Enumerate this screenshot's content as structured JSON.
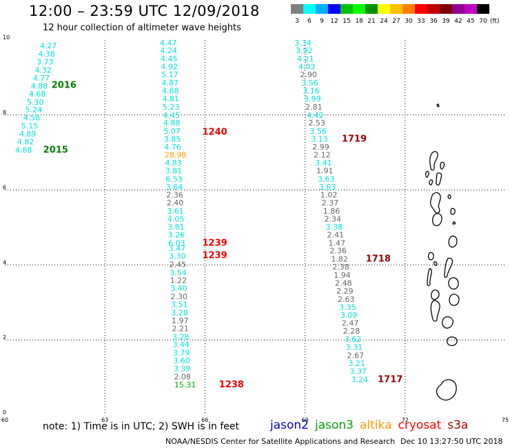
{
  "header": {
    "title": "12:00 – 23:59 UTC 12/09/2018",
    "subtitle": "12 hour collection of altimeter wave heights"
  },
  "legend": {
    "colorbar_labels": [
      "3",
      "6",
      "9",
      "12",
      "15",
      "18",
      "21",
      "24",
      "27",
      "30",
      "33",
      "36",
      "39",
      "42",
      "45",
      "70"
    ],
    "colorbar_colors": [
      "#808080",
      "#00ffff",
      "#00b0ff",
      "#0000ff",
      "#00c000",
      "#00ff00",
      "#009000",
      "#ffff00",
      "#ffc000",
      "#ff8000",
      "#ff0000",
      "#c00000",
      "#800000",
      "#900090",
      "#c000c0",
      "#000000"
    ],
    "unit": "(ft)",
    "satellites": [
      {
        "name": "jason2",
        "color": "#0000cc"
      },
      {
        "name": "jason3",
        "color": "#00a000"
      },
      {
        "name": "altika",
        "color": "#ff9900"
      },
      {
        "name": "cryosat",
        "color": "#ff0000"
      },
      {
        "name": "s3a",
        "color": "#b00000"
      }
    ]
  },
  "footer": {
    "note": "note: 1) Time is in UTC; 2) SWH is in feet",
    "credit": "NOAA/NESDIS Center for Satellite Applications and Research",
    "timestamp": "Dec 10 13:27:50 UTC 2018"
  },
  "map": {
    "lon_range": [
      60,
      75
    ],
    "lat_range": [
      0,
      10
    ],
    "x_ticks": [
      "60",
      "63",
      "66",
      "69",
      "72",
      "75"
    ],
    "y_ticks": [
      "0",
      "2",
      "4",
      "6",
      "8",
      "10"
    ],
    "coastline": "Maldives",
    "colors": {
      "cyan": "#00e0e0",
      "gray": "#666666",
      "green": "#008000",
      "orange": "#ff9900",
      "red": "#ee0000",
      "darkred": "#990000",
      "lightgreen": "#00b000"
    },
    "tracks": [
      {
        "lon": 61.05,
        "lat": 9.85,
        "value": "4.27",
        "color": "cyan"
      },
      {
        "lon": 61.0,
        "lat": 9.63,
        "value": "4.38",
        "color": "cyan"
      },
      {
        "lon": 60.95,
        "lat": 9.42,
        "value": "3.73",
        "color": "cyan"
      },
      {
        "lon": 60.9,
        "lat": 9.2,
        "value": "4.32",
        "color": "cyan"
      },
      {
        "lon": 60.84,
        "lat": 8.99,
        "value": "4.77",
        "color": "cyan"
      },
      {
        "lon": 60.78,
        "lat": 8.78,
        "value": "4.88",
        "color": "cyan"
      },
      {
        "lon": 60.72,
        "lat": 8.57,
        "value": "4.68",
        "color": "cyan"
      },
      {
        "lon": 60.66,
        "lat": 8.35,
        "value": "5.30",
        "color": "cyan"
      },
      {
        "lon": 60.61,
        "lat": 8.14,
        "value": "5.24",
        "color": "cyan"
      },
      {
        "lon": 60.55,
        "lat": 7.93,
        "value": "4.58",
        "color": "cyan"
      },
      {
        "lon": 60.49,
        "lat": 7.71,
        "value": "5.15",
        "color": "cyan"
      },
      {
        "lon": 60.43,
        "lat": 7.5,
        "value": "4.89",
        "color": "cyan"
      },
      {
        "lon": 60.37,
        "lat": 7.29,
        "value": "4.82",
        "color": "cyan"
      },
      {
        "lon": 60.31,
        "lat": 7.07,
        "value": "4.88",
        "color": "cyan"
      },
      {
        "lon": 61.4,
        "lat": 8.8,
        "value": "2016",
        "color": "green",
        "label": true
      },
      {
        "lon": 61.15,
        "lat": 7.07,
        "value": "2015",
        "color": "green",
        "label": true
      },
      {
        "lon": 64.65,
        "lat": 9.93,
        "value": "4.47",
        "color": "cyan"
      },
      {
        "lon": 64.66,
        "lat": 9.72,
        "value": "4.24",
        "color": "cyan"
      },
      {
        "lon": 64.67,
        "lat": 9.5,
        "value": "4.45",
        "color": "cyan"
      },
      {
        "lon": 64.68,
        "lat": 9.29,
        "value": "4.92",
        "color": "cyan"
      },
      {
        "lon": 64.69,
        "lat": 9.08,
        "value": "5.17",
        "color": "cyan"
      },
      {
        "lon": 64.7,
        "lat": 8.86,
        "value": "4.87",
        "color": "cyan"
      },
      {
        "lon": 64.71,
        "lat": 8.65,
        "value": "4.68",
        "color": "cyan"
      },
      {
        "lon": 64.72,
        "lat": 8.44,
        "value": "4.81",
        "color": "cyan"
      },
      {
        "lon": 64.73,
        "lat": 8.22,
        "value": "5.23",
        "color": "cyan"
      },
      {
        "lon": 64.74,
        "lat": 8.0,
        "value": "4.45",
        "color": "cyan"
      },
      {
        "lon": 64.75,
        "lat": 7.79,
        "value": "4.88",
        "color": "cyan"
      },
      {
        "lon": 64.76,
        "lat": 7.57,
        "value": "5.07",
        "color": "cyan"
      },
      {
        "lon": 64.77,
        "lat": 7.36,
        "value": "3.85",
        "color": "cyan"
      },
      {
        "lon": 64.78,
        "lat": 7.15,
        "value": "4.76",
        "color": "cyan"
      },
      {
        "lon": 64.79,
        "lat": 6.94,
        "value": "28.98",
        "color": "orange"
      },
      {
        "lon": 64.8,
        "lat": 6.73,
        "value": "4.83",
        "color": "cyan"
      },
      {
        "lon": 64.81,
        "lat": 6.52,
        "value": "3.81",
        "color": "cyan"
      },
      {
        "lon": 64.82,
        "lat": 6.3,
        "value": "6.53",
        "color": "cyan"
      },
      {
        "lon": 64.83,
        "lat": 6.08,
        "value": "3.64",
        "color": "cyan"
      },
      {
        "lon": 64.84,
        "lat": 5.87,
        "value": "2.36",
        "color": "gray"
      },
      {
        "lon": 64.85,
        "lat": 5.66,
        "value": "2.40",
        "color": "gray"
      },
      {
        "lon": 64.86,
        "lat": 5.44,
        "value": "3.61",
        "color": "cyan"
      },
      {
        "lon": 64.87,
        "lat": 5.23,
        "value": "4.05",
        "color": "cyan"
      },
      {
        "lon": 64.88,
        "lat": 5.02,
        "value": "3.81",
        "color": "cyan"
      },
      {
        "lon": 64.89,
        "lat": 4.81,
        "value": "3.26",
        "color": "cyan"
      },
      {
        "lon": 64.9,
        "lat": 4.59,
        "value": "6.03",
        "color": "cyan"
      },
      {
        "lon": 64.91,
        "lat": 4.45,
        "value": "3.47",
        "color": "cyan"
      },
      {
        "lon": 64.92,
        "lat": 4.24,
        "value": "3.30",
        "color": "cyan"
      },
      {
        "lon": 64.93,
        "lat": 4.02,
        "value": "2.45",
        "color": "gray"
      },
      {
        "lon": 64.94,
        "lat": 3.8,
        "value": "3.54",
        "color": "cyan"
      },
      {
        "lon": 64.95,
        "lat": 3.59,
        "value": "1.22",
        "color": "gray"
      },
      {
        "lon": 64.96,
        "lat": 3.38,
        "value": "3.40",
        "color": "cyan"
      },
      {
        "lon": 64.97,
        "lat": 3.16,
        "value": "2.30",
        "color": "gray"
      },
      {
        "lon": 64.98,
        "lat": 2.95,
        "value": "3.51",
        "color": "cyan"
      },
      {
        "lon": 64.99,
        "lat": 2.73,
        "value": "3.28",
        "color": "cyan"
      },
      {
        "lon": 65.0,
        "lat": 2.52,
        "value": "1.97",
        "color": "gray"
      },
      {
        "lon": 65.01,
        "lat": 2.31,
        "value": "2.21",
        "color": "gray"
      },
      {
        "lon": 65.02,
        "lat": 2.09,
        "value": "3.28",
        "color": "cyan"
      },
      {
        "lon": 65.03,
        "lat": 1.88,
        "value": "3.44",
        "color": "cyan"
      },
      {
        "lon": 65.04,
        "lat": 1.66,
        "value": "3.79",
        "color": "cyan"
      },
      {
        "lon": 65.05,
        "lat": 1.45,
        "value": "3.60",
        "color": "cyan"
      },
      {
        "lon": 65.06,
        "lat": 1.24,
        "value": "3.39",
        "color": "cyan"
      },
      {
        "lon": 65.07,
        "lat": 1.02,
        "value": "2.08",
        "color": "gray"
      },
      {
        "lon": 65.08,
        "lat": 0.81,
        "value": "15.31",
        "color": "lightgreen"
      },
      {
        "lon": 65.92,
        "lat": 7.55,
        "value": "1240",
        "color": "red",
        "label": true
      },
      {
        "lon": 65.92,
        "lat": 4.59,
        "value": "1239",
        "color": "red",
        "label": true
      },
      {
        "lon": 65.92,
        "lat": 4.26,
        "value": "1239",
        "color": "red",
        "label": true
      },
      {
        "lon": 66.42,
        "lat": 0.81,
        "value": "1238",
        "color": "red",
        "label": true
      },
      {
        "lon": 68.68,
        "lat": 9.93,
        "value": "3.34",
        "color": "cyan"
      },
      {
        "lon": 68.72,
        "lat": 9.72,
        "value": "3.92",
        "color": "cyan"
      },
      {
        "lon": 68.76,
        "lat": 9.5,
        "value": "4.21",
        "color": "cyan"
      },
      {
        "lon": 68.8,
        "lat": 9.29,
        "value": "4.03",
        "color": "cyan"
      },
      {
        "lon": 68.85,
        "lat": 9.08,
        "value": "2.90",
        "color": "gray"
      },
      {
        "lon": 68.89,
        "lat": 8.86,
        "value": "3.56",
        "color": "cyan"
      },
      {
        "lon": 68.93,
        "lat": 8.65,
        "value": "3.16",
        "color": "cyan"
      },
      {
        "lon": 68.97,
        "lat": 8.44,
        "value": "3.99",
        "color": "cyan"
      },
      {
        "lon": 69.01,
        "lat": 8.22,
        "value": "2.81",
        "color": "gray"
      },
      {
        "lon": 69.05,
        "lat": 8.0,
        "value": "4.42",
        "color": "cyan"
      },
      {
        "lon": 69.1,
        "lat": 7.79,
        "value": "2.53",
        "color": "gray"
      },
      {
        "lon": 69.14,
        "lat": 7.57,
        "value": "3.56",
        "color": "cyan"
      },
      {
        "lon": 69.18,
        "lat": 7.36,
        "value": "3.13",
        "color": "cyan"
      },
      {
        "lon": 69.22,
        "lat": 7.15,
        "value": "2.99",
        "color": "gray"
      },
      {
        "lon": 69.26,
        "lat": 6.94,
        "value": "2.12",
        "color": "gray"
      },
      {
        "lon": 69.3,
        "lat": 6.73,
        "value": "3.41",
        "color": "cyan"
      },
      {
        "lon": 69.34,
        "lat": 6.52,
        "value": "1.91",
        "color": "gray"
      },
      {
        "lon": 69.38,
        "lat": 6.3,
        "value": "3.63",
        "color": "cyan"
      },
      {
        "lon": 69.42,
        "lat": 6.08,
        "value": "3.63",
        "color": "cyan"
      },
      {
        "lon": 69.46,
        "lat": 5.87,
        "value": "1.02",
        "color": "gray"
      },
      {
        "lon": 69.5,
        "lat": 5.66,
        "value": "2.37",
        "color": "gray"
      },
      {
        "lon": 69.54,
        "lat": 5.44,
        "value": "1.86",
        "color": "gray"
      },
      {
        "lon": 69.58,
        "lat": 5.23,
        "value": "2.34",
        "color": "gray"
      },
      {
        "lon": 69.62,
        "lat": 5.02,
        "value": "3.38",
        "color": "cyan"
      },
      {
        "lon": 69.66,
        "lat": 4.81,
        "value": "2.41",
        "color": "gray"
      },
      {
        "lon": 69.7,
        "lat": 4.59,
        "value": "1.47",
        "color": "gray"
      },
      {
        "lon": 69.74,
        "lat": 4.38,
        "value": "2.36",
        "color": "gray"
      },
      {
        "lon": 69.78,
        "lat": 4.16,
        "value": "1.82",
        "color": "gray"
      },
      {
        "lon": 69.82,
        "lat": 3.95,
        "value": "2.38",
        "color": "gray"
      },
      {
        "lon": 69.86,
        "lat": 3.73,
        "value": "1.94",
        "color": "gray"
      },
      {
        "lon": 69.9,
        "lat": 3.52,
        "value": "2.48",
        "color": "gray"
      },
      {
        "lon": 69.94,
        "lat": 3.31,
        "value": "2.29",
        "color": "gray"
      },
      {
        "lon": 69.98,
        "lat": 3.09,
        "value": "2.63",
        "color": "gray"
      },
      {
        "lon": 70.02,
        "lat": 2.88,
        "value": "3.35",
        "color": "cyan"
      },
      {
        "lon": 70.06,
        "lat": 2.67,
        "value": "3.09",
        "color": "cyan"
      },
      {
        "lon": 70.1,
        "lat": 2.45,
        "value": "2.47",
        "color": "gray"
      },
      {
        "lon": 70.14,
        "lat": 2.24,
        "value": "2.28",
        "color": "gray"
      },
      {
        "lon": 70.18,
        "lat": 2.02,
        "value": "3.62",
        "color": "cyan"
      },
      {
        "lon": 70.22,
        "lat": 1.81,
        "value": "3.31",
        "color": "cyan"
      },
      {
        "lon": 70.26,
        "lat": 1.59,
        "value": "2.67",
        "color": "gray"
      },
      {
        "lon": 70.3,
        "lat": 1.38,
        "value": "3.21",
        "color": "cyan"
      },
      {
        "lon": 70.34,
        "lat": 1.17,
        "value": "3.37",
        "color": "cyan"
      },
      {
        "lon": 70.38,
        "lat": 0.95,
        "value": "3.24",
        "color": "cyan"
      },
      {
        "lon": 70.1,
        "lat": 7.36,
        "value": "1719",
        "color": "darkred",
        "label": true
      },
      {
        "lon": 70.82,
        "lat": 4.16,
        "value": "1718",
        "color": "darkred",
        "label": true
      },
      {
        "lon": 71.18,
        "lat": 0.95,
        "value": "1717",
        "color": "darkred",
        "label": true
      }
    ]
  }
}
